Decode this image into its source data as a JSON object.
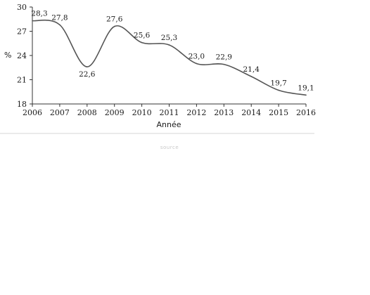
{
  "chart_data": {
    "type": "line",
    "title": "",
    "xlabel": "Année",
    "ylabel": "%",
    "x": [
      "2006",
      "2007",
      "2008",
      "2009",
      "2010",
      "2011",
      "2012",
      "2013",
      "2014",
      "2015",
      "2016"
    ],
    "series": [
      {
        "values": [
          28.3,
          27.8,
          22.6,
          27.6,
          25.6,
          25.3,
          23.0,
          22.9,
          21.4,
          19.7,
          19.1
        ],
        "labels": [
          "28,3",
          "27,8",
          "22,6",
          "27,6",
          "25,6",
          "25,3",
          "23,0",
          "22,9",
          "21,4",
          "19,7",
          "19,1"
        ]
      }
    ],
    "yticks": [
      "18",
      "21",
      "24",
      "27",
      "30"
    ],
    "ylim": [
      18,
      30
    ],
    "grid": false,
    "legend": "none",
    "line_color": "#555555",
    "faint_text": "source"
  }
}
